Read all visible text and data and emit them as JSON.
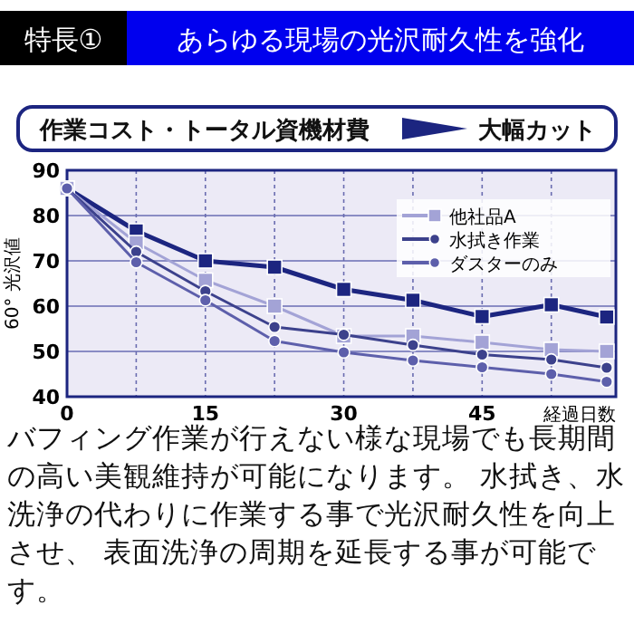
{
  "chart_data": {
    "type": "line",
    "title": "特長①",
    "subtitle": "あらゆる現場の光沢耐久性を強化",
    "annotations": [
      "作業コスト・トータル資機材費",
      "大幅カット",
      "バフィング作業が行えない様な現場でも長期間の高い美観維持が可能になります。 水拭き、水洗浄の代わりに作業する事で光沢耐久性を向上させ、 表面洗浄の周期を延長する事が可能です。"
    ],
    "xlabel": "経過日数",
    "ylabel": "60° 光沢値",
    "x": [
      0,
      7.5,
      15,
      22.5,
      30,
      37.5,
      45,
      52.5,
      58.5
    ],
    "series": [
      {
        "color": "#1c2580",
        "marker": "square",
        "values": [
          86,
          76.6,
          70,
          68.6,
          63.7,
          61.3,
          57.7,
          60.3,
          57.6
        ]
      },
      {
        "name": "他社品A",
        "color": "#a3a3d6",
        "marker": "square",
        "values": [
          86,
          74,
          65.7,
          60,
          53.4,
          53.4,
          52,
          50.4,
          50
        ]
      },
      {
        "name": "水拭き作業",
        "color": "#3c418c",
        "marker": "circle",
        "values": [
          86,
          72,
          63.3,
          55.4,
          53.7,
          51.4,
          49.3,
          48.2,
          46.4
        ]
      },
      {
        "name": "ダスターのみ",
        "color": "#5d5fab",
        "marker": "circle",
        "values": [
          86,
          69.7,
          61.3,
          52.3,
          49.8,
          48,
          46.5,
          45,
          43.3
        ]
      }
    ],
    "xlim": [
      0,
      59.5
    ],
    "xticks": [
      0,
      {
        "value": 7.5,
        "label": null
      },
      15,
      {
        "value": 22.5,
        "label": null
      },
      30,
      {
        "value": 37.5,
        "label": null
      },
      45,
      {
        "value": 52.5,
        "label": null
      }
    ],
    "ylim": [
      40,
      90
    ],
    "yticks": [
      40,
      50,
      60,
      70,
      80,
      90
    ],
    "grid": true,
    "legend": "top right"
  }
}
